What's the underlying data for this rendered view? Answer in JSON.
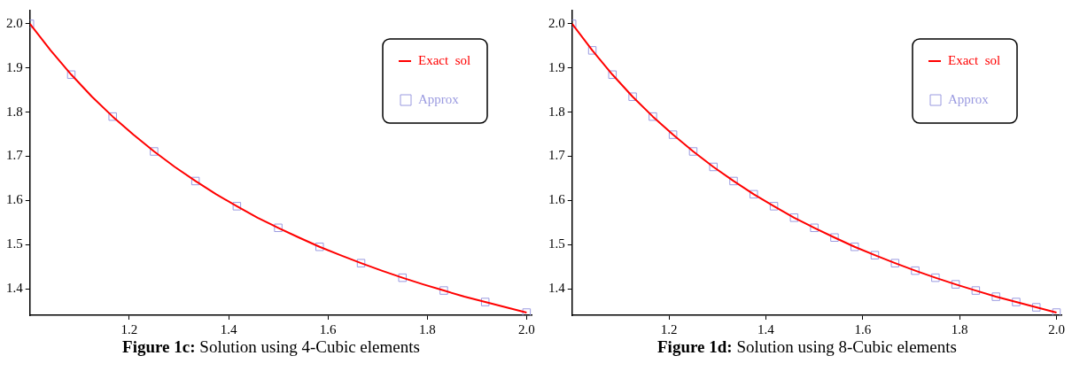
{
  "chart_data": [
    {
      "type": "line",
      "title": "Figure 1c:",
      "subtitle": "Solution using 4-Cubic elements",
      "xlim": [
        1,
        2.01
      ],
      "ylim": [
        1.34,
        2.03
      ],
      "xticks": [
        1.2,
        1.4,
        1.6,
        1.8,
        {
          "value": 2,
          "label": "2.0"
        }
      ],
      "yticks": [
        1.4,
        1.5,
        1.6,
        1.7,
        1.8,
        1.9,
        {
          "value": 2,
          "label": "2.0"
        }
      ],
      "grid": false,
      "legend": "top right",
      "series": [
        {
          "name": "Exact  sol",
          "color": "#ff0000",
          "marker": "none",
          "line_style": "solid",
          "x": [
            1,
            1.0417,
            1.0833,
            1.125,
            1.1667,
            1.2083,
            1.25,
            1.2917,
            1.3333,
            1.375,
            1.4167,
            1.4583,
            1.5,
            1.5417,
            1.5833,
            1.625,
            1.6667,
            1.7083,
            1.75,
            1.7917,
            1.8333,
            1.875,
            1.9167,
            1.9583,
            2
          ],
          "values": [
            2.0,
            1.94,
            1.885,
            1.835,
            1.79,
            1.749,
            1.711,
            1.676,
            1.644,
            1.614,
            1.587,
            1.561,
            1.538,
            1.516,
            1.495,
            1.476,
            1.458,
            1.441,
            1.425,
            1.41,
            1.396,
            1.382,
            1.37,
            1.358,
            1.346
          ]
        },
        {
          "name": "Approx",
          "type": "scatter",
          "color": "#9a9ae0",
          "marker": "square",
          "x": [
            1,
            1.0833,
            1.1667,
            1.25,
            1.3333,
            1.4167,
            1.5,
            1.5833,
            1.6667,
            1.75,
            1.8333,
            1.9167,
            2
          ],
          "values": [
            2.0,
            1.885,
            1.79,
            1.711,
            1.644,
            1.587,
            1.538,
            1.495,
            1.458,
            1.425,
            1.396,
            1.37,
            1.346
          ]
        }
      ]
    },
    {
      "type": "line",
      "title": "Figure 1d:",
      "subtitle": "Solution using 8-Cubic elements",
      "xlim": [
        1,
        2.01
      ],
      "ylim": [
        1.34,
        2.03
      ],
      "xticks": [
        1.2,
        1.4,
        1.6,
        1.8,
        {
          "value": 2,
          "label": "2.0"
        }
      ],
      "yticks": [
        1.4,
        1.5,
        1.6,
        1.7,
        1.8,
        1.9,
        {
          "value": 2,
          "label": "2.0"
        }
      ],
      "grid": false,
      "legend": "top right",
      "series": [
        {
          "name": "Exact  sol",
          "color": "#ff0000",
          "marker": "none",
          "line_style": "solid",
          "x": [
            1,
            1.0417,
            1.0833,
            1.125,
            1.1667,
            1.2083,
            1.25,
            1.2917,
            1.3333,
            1.375,
            1.4167,
            1.4583,
            1.5,
            1.5417,
            1.5833,
            1.625,
            1.6667,
            1.7083,
            1.75,
            1.7917,
            1.8333,
            1.875,
            1.9167,
            1.9583,
            2
          ],
          "values": [
            2.0,
            1.94,
            1.885,
            1.835,
            1.79,
            1.749,
            1.711,
            1.676,
            1.644,
            1.614,
            1.587,
            1.561,
            1.538,
            1.516,
            1.495,
            1.476,
            1.458,
            1.441,
            1.425,
            1.41,
            1.396,
            1.382,
            1.37,
            1.358,
            1.346
          ]
        },
        {
          "name": "Approx",
          "type": "scatter",
          "color": "#9a9ae0",
          "marker": "square",
          "x": [
            1,
            1.0417,
            1.0833,
            1.125,
            1.1667,
            1.2083,
            1.25,
            1.2917,
            1.3333,
            1.375,
            1.4167,
            1.4583,
            1.5,
            1.5417,
            1.5833,
            1.625,
            1.6667,
            1.7083,
            1.75,
            1.7917,
            1.8333,
            1.875,
            1.9167,
            1.9583,
            2
          ],
          "values": [
            2.0,
            1.94,
            1.885,
            1.835,
            1.79,
            1.749,
            1.711,
            1.676,
            1.644,
            1.614,
            1.587,
            1.561,
            1.538,
            1.516,
            1.495,
            1.476,
            1.458,
            1.441,
            1.425,
            1.41,
            1.396,
            1.382,
            1.37,
            1.358,
            1.346
          ]
        }
      ]
    }
  ]
}
